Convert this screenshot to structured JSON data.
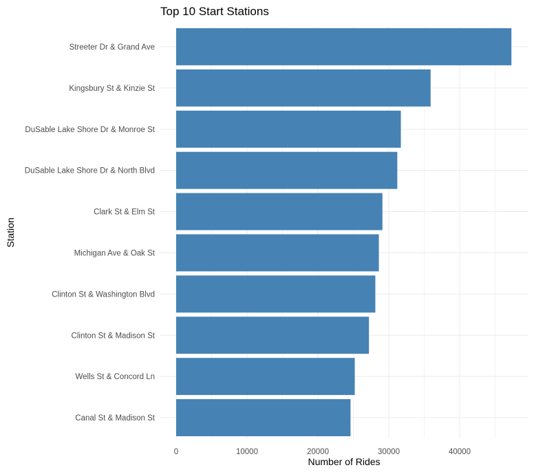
{
  "chart_data": {
    "type": "bar",
    "orientation": "horizontal",
    "title": "Top 10 Start Stations",
    "xlabel": "Number of Rides",
    "ylabel": "Station",
    "categories": [
      "Streeter Dr & Grand Ave",
      "Kingsbury St & Kinzie St",
      "DuSable Lake Shore Dr & Monroe St",
      "DuSable Lake Shore Dr & North Blvd",
      "Clark St & Elm St",
      "Michigan Ave & Oak St",
      "Clinton St & Washington Blvd",
      "Clinton St & Madison St",
      "Wells St & Concord Ln",
      "Canal St & Madison St"
    ],
    "values": [
      47300,
      35900,
      31700,
      31200,
      29100,
      28600,
      28100,
      27200,
      25200,
      24600
    ],
    "xlim": [
      0,
      49500
    ],
    "xticks": [
      0,
      10000,
      20000,
      30000,
      40000
    ],
    "xtick_labels": [
      "0",
      "10000",
      "20000",
      "30000",
      "40000"
    ],
    "bar_color": "#4682b4",
    "grid": true
  }
}
